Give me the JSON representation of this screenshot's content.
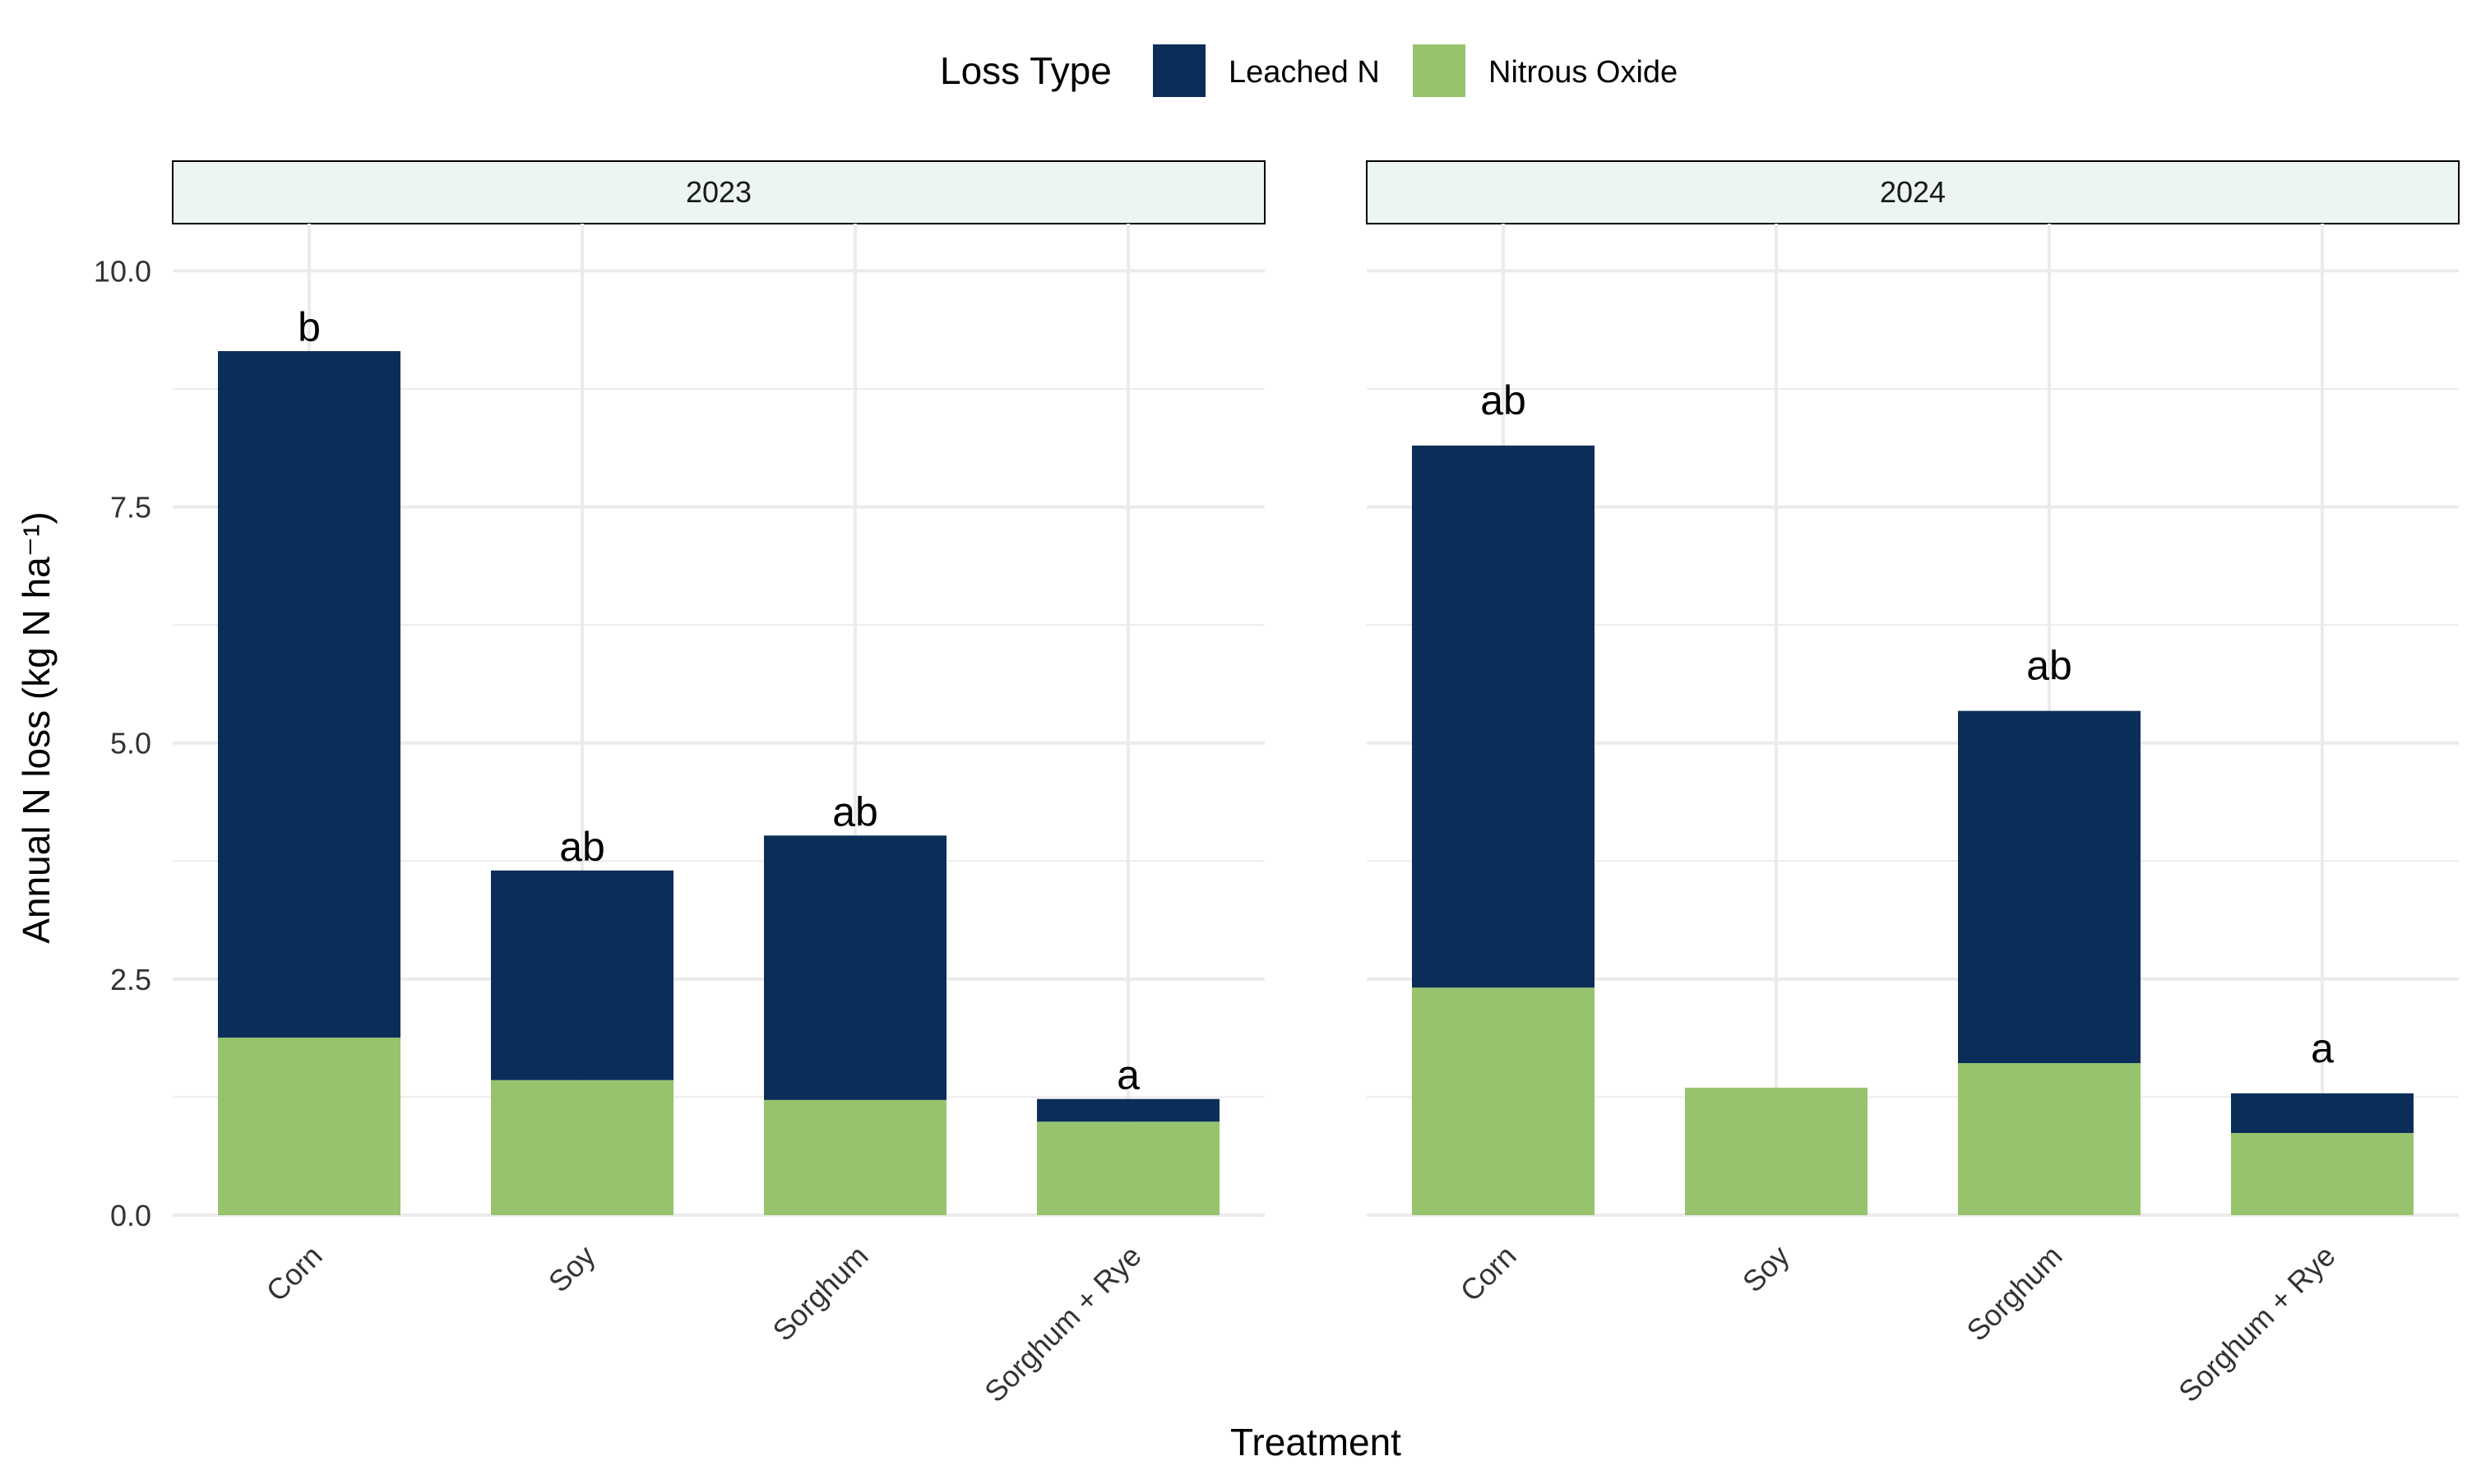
{
  "chart_data": {
    "type": "bar",
    "stacked": true,
    "ylabel": "Annual N loss (kg N ha⁻¹)",
    "xlabel": "Treatment",
    "ylim": [
      0,
      10.5
    ],
    "yticks": [
      0.0,
      2.5,
      5.0,
      7.5,
      10.0
    ],
    "ytick_labels": [
      "0.0",
      "2.5",
      "5.0",
      "7.5",
      "10.0"
    ],
    "grid": true,
    "legend": {
      "title": "Loss Type",
      "position": "top",
      "entries": [
        {
          "name": "Leached N",
          "color": "#0b2e59"
        },
        {
          "name": "Nitrous Oxide",
          "color": "#97c36d"
        }
      ]
    },
    "colors": {
      "leached": "#0b2e59",
      "nitrous": "#97c36d",
      "strip_fill": "#ecf4f4",
      "grid": "#ebebeb"
    },
    "panels": [
      {
        "title": "2023",
        "categories": [
          "Corn",
          "Soy",
          "Sorghum",
          "Sorghum + Rye"
        ],
        "series": [
          {
            "name": "Nitrous Oxide",
            "values": [
              1.88,
              1.43,
              1.22,
              0.99
            ]
          },
          {
            "name": "Leached N",
            "values": [
              7.27,
              2.22,
              2.8,
              0.24
            ]
          }
        ],
        "totals": [
          9.15,
          3.65,
          4.02,
          1.23
        ],
        "letters": [
          "b",
          "ab",
          "ab",
          "a"
        ]
      },
      {
        "title": "2024",
        "categories": [
          "Corn",
          "Soy",
          "Sorghum",
          "Sorghum + Rye"
        ],
        "series": [
          {
            "name": "Nitrous Oxide",
            "values": [
              2.41,
              1.35,
              1.61,
              0.87
            ]
          },
          {
            "name": "Leached N",
            "values": [
              5.74,
              0.0,
              3.73,
              0.42
            ]
          }
        ],
        "totals": [
          8.15,
          1.35,
          5.34,
          1.29
        ],
        "letters": [
          "ab",
          "",
          "ab",
          "a"
        ]
      }
    ]
  }
}
